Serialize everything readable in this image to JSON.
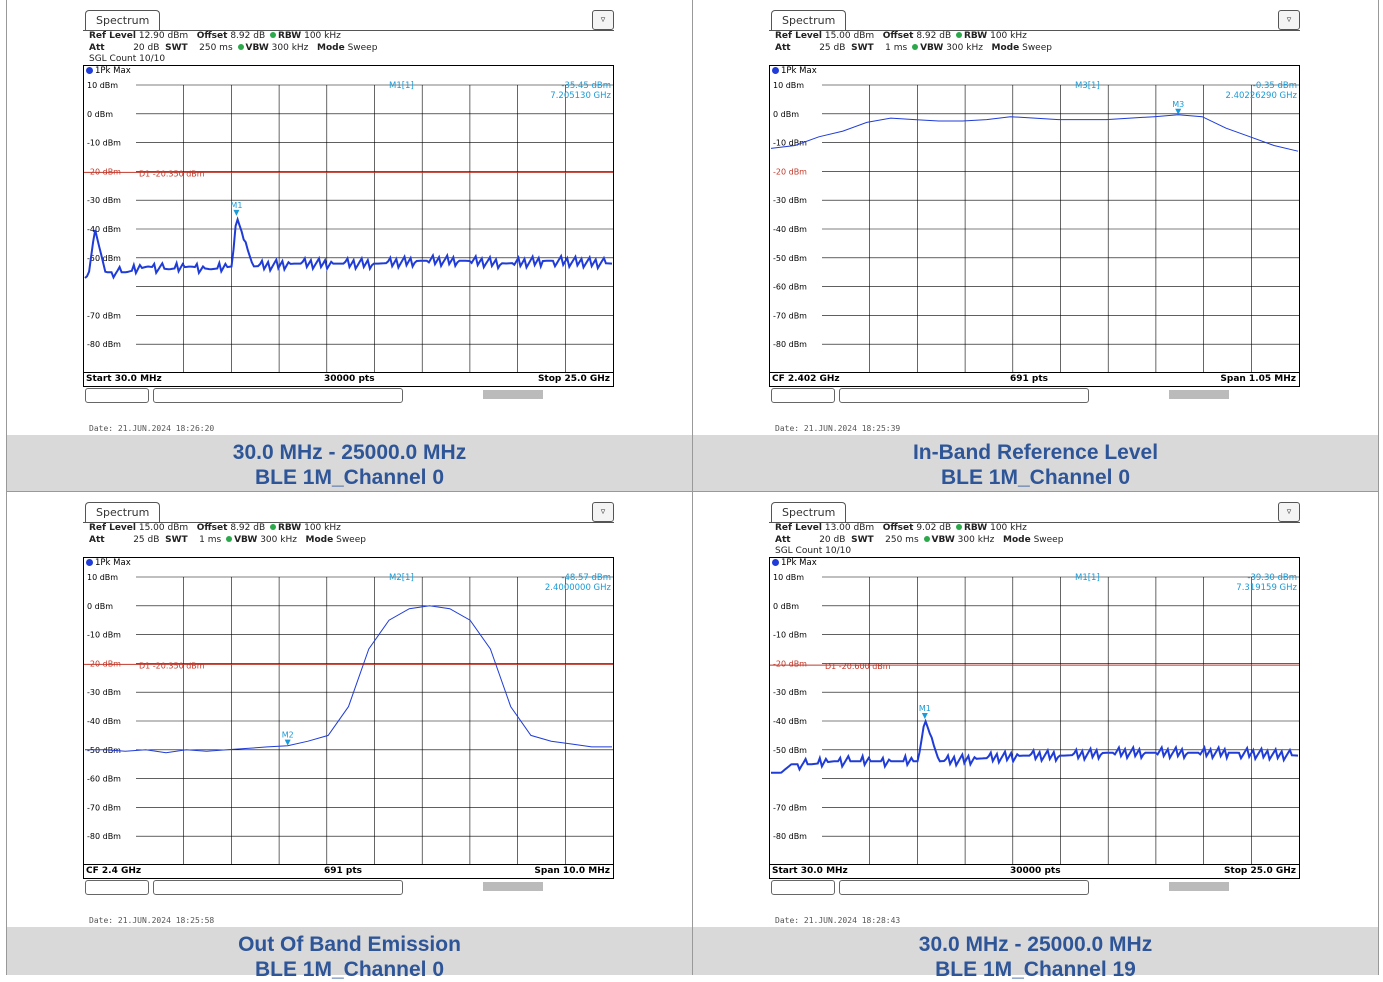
{
  "panels": [
    {
      "tab": "Spectrum",
      "ref_level": "12.90 dBm",
      "offset": "8.92 dB",
      "rbw": "100 kHz",
      "att": "20 dB",
      "swt": "250 ms",
      "vbw": "300 kHz",
      "mode": "Sweep",
      "sgl": "SGL Count 10/10",
      "trace": "1Pk Max",
      "marker_name": "M1[1]",
      "marker_value": "-35.45 dBm",
      "marker_freq": "7.205130 GHz",
      "marker_label": "M1",
      "d1": "D1 -20.350 dBm",
      "y_labels": [
        "10 dBm",
        "0 dBm",
        "-10 dBm",
        "-20 dBm",
        "-30 dBm",
        "-40 dBm",
        "-50 dBm",
        "",
        "-70 dBm",
        "-80 dBm"
      ],
      "footer_left": "Start 30.0 MHz",
      "footer_mid": "30000 pts",
      "footer_right": "Stop 25.0 GHz",
      "date": "Date: 21.JUN.2024  18:26:20",
      "caption_line1": "30.0 MHz - 25000.0 MHz",
      "caption_line2": "BLE 1M_Channel 0"
    },
    {
      "tab": "Spectrum",
      "ref_level": "15.00 dBm",
      "offset": "8.92 dB",
      "rbw": "100 kHz",
      "att": "25 dB",
      "swt": "1 ms",
      "vbw": "300 kHz",
      "mode": "Sweep",
      "sgl": "",
      "trace": "1Pk Max",
      "marker_name": "M3[1]",
      "marker_value": "-0.35 dBm",
      "marker_freq": "2.40226290 GHz",
      "marker_label": "M3",
      "d1": "",
      "y_labels": [
        "10 dBm",
        "0 dBm",
        "-10 dBm",
        "-20 dBm",
        "-30 dBm",
        "-40 dBm",
        "-50 dBm",
        "-60 dBm",
        "-70 dBm",
        "-80 dBm"
      ],
      "footer_left": "CF 2.402 GHz",
      "footer_mid": "691 pts",
      "footer_right": "Span 1.05 MHz",
      "date": "Date: 21.JUN.2024  18:25:39",
      "caption_line1": "In-Band Reference Level",
      "caption_line2": "BLE 1M_Channel 0"
    },
    {
      "tab": "Spectrum",
      "ref_level": "15.00 dBm",
      "offset": "8.92 dB",
      "rbw": "100 kHz",
      "att": "25 dB",
      "swt": "1 ms",
      "vbw": "300 kHz",
      "mode": "Sweep",
      "sgl": "",
      "trace": "1Pk Max",
      "marker_name": "M2[1]",
      "marker_value": "-48.57 dBm",
      "marker_freq": "2.4000000 GHz",
      "marker_label": "M2",
      "d1": "D1 -20.350 dBm",
      "y_labels": [
        "10 dBm",
        "0 dBm",
        "-10 dBm",
        "-20 dBm",
        "-30 dBm",
        "-40 dBm",
        "-50 dBm",
        "-60 dBm",
        "-70 dBm",
        "-80 dBm"
      ],
      "footer_left": "CF 2.4 GHz",
      "footer_mid": "691 pts",
      "footer_right": "Span 10.0 MHz",
      "date": "Date: 21.JUN.2024  18:25:58",
      "caption_line1": "Out Of Band Emission",
      "caption_line2": "BLE 1M_Channel 0"
    },
    {
      "tab": "Spectrum",
      "ref_level": "13.00 dBm",
      "offset": "9.02 dB",
      "rbw": "100 kHz",
      "att": "20 dB",
      "swt": "250 ms",
      "vbw": "300 kHz",
      "mode": "Sweep",
      "sgl": "SGL Count 10/10",
      "trace": "1Pk Max",
      "marker_name": "M1[1]",
      "marker_value": "-39.30 dBm",
      "marker_freq": "7.319159 GHz",
      "marker_label": "M1",
      "d1": "D1 -20.600 dBm",
      "y_labels": [
        "10 dBm",
        "0 dBm",
        "-10 dBm",
        "-20 dBm",
        "-30 dBm",
        "-40 dBm",
        "-50 dBm",
        "",
        "-70 dBm",
        "-80 dBm"
      ],
      "footer_left": "Start 30.0 MHz",
      "footer_mid": "30000 pts",
      "footer_right": "Stop 25.0 GHz",
      "date": "Date: 21.JUN.2024  18:28:43",
      "caption_line1": "30.0 MHz - 25000.0 MHz",
      "caption_line2": "BLE 1M_Channel 19"
    }
  ],
  "chart_data": [
    {
      "type": "line",
      "title": "",
      "ylabel": "",
      "ylim": [
        -90,
        10
      ],
      "x_start": "Start 30.0 MHz",
      "x_stop": "Stop 25.0 GHz",
      "series": [
        {
          "name": "1Pk Max",
          "x_ghz": [
            0.03,
            0.2,
            0.5,
            1,
            2,
            3,
            4,
            5,
            6,
            7,
            7.205,
            8,
            10,
            12,
            14,
            16,
            18,
            20,
            22,
            25
          ],
          "values": [
            -57,
            -56,
            -40,
            -55,
            -55,
            -53,
            -54,
            -53,
            -54,
            -53,
            -35.45,
            -53,
            -52,
            -52,
            -52,
            -51,
            -51,
            -52,
            -51,
            -52
          ]
        }
      ],
      "d1_level": -20.35,
      "marker": {
        "x_ghz": 7.20513,
        "y": -35.45
      }
    },
    {
      "type": "line",
      "title": "",
      "ylabel": "",
      "ylim": [
        -90,
        10
      ],
      "x_center": "CF 2.402 GHz",
      "span": "Span 1.05 MHz",
      "series": [
        {
          "name": "1Pk Max",
          "values": [
            -12,
            -11,
            -8,
            -6,
            -3,
            -1.5,
            -2,
            -2.5,
            -2.5,
            -2,
            -1,
            -1.5,
            -2,
            -2,
            -2,
            -1.5,
            -1,
            -0.35,
            -1,
            -5,
            -8,
            -11,
            -13
          ]
        }
      ],
      "marker": {
        "y": -0.35
      }
    },
    {
      "type": "line",
      "title": "",
      "ylabel": "",
      "ylim": [
        -90,
        10
      ],
      "x_center": "CF 2.4 GHz",
      "span": "Span 10.0 MHz",
      "series": [
        {
          "name": "1Pk Max",
          "values": [
            -50,
            -50,
            -50.5,
            -50,
            -51,
            -50,
            -50.5,
            -50,
            -49.5,
            -49,
            -48.57,
            -47,
            -45,
            -35,
            -15,
            -5,
            -1,
            0,
            -1,
            -5,
            -15,
            -35,
            -45,
            -47,
            -48,
            -49,
            -49
          ]
        }
      ],
      "d1_level": -20.35,
      "marker": {
        "y": -48.57
      }
    },
    {
      "type": "line",
      "title": "",
      "ylabel": "",
      "ylim": [
        -90,
        10
      ],
      "x_start": "Start 30.0 MHz",
      "x_stop": "Stop 25.0 GHz",
      "series": [
        {
          "name": "1Pk Max",
          "x_ghz": [
            0.03,
            0.2,
            0.5,
            1,
            2,
            3,
            4,
            5,
            6,
            7,
            7.319,
            8,
            10,
            12,
            14,
            16,
            18,
            20,
            22,
            25
          ],
          "values": [
            -58,
            -58,
            -58,
            -55,
            -55,
            -54,
            -54,
            -54,
            -54,
            -54,
            -39.3,
            -54,
            -53,
            -52,
            -52,
            -51,
            -51,
            -51,
            -51,
            -52
          ]
        }
      ],
      "d1_level": -20.6,
      "marker": {
        "x_ghz": 7.319159,
        "y": -39.3
      }
    }
  ]
}
